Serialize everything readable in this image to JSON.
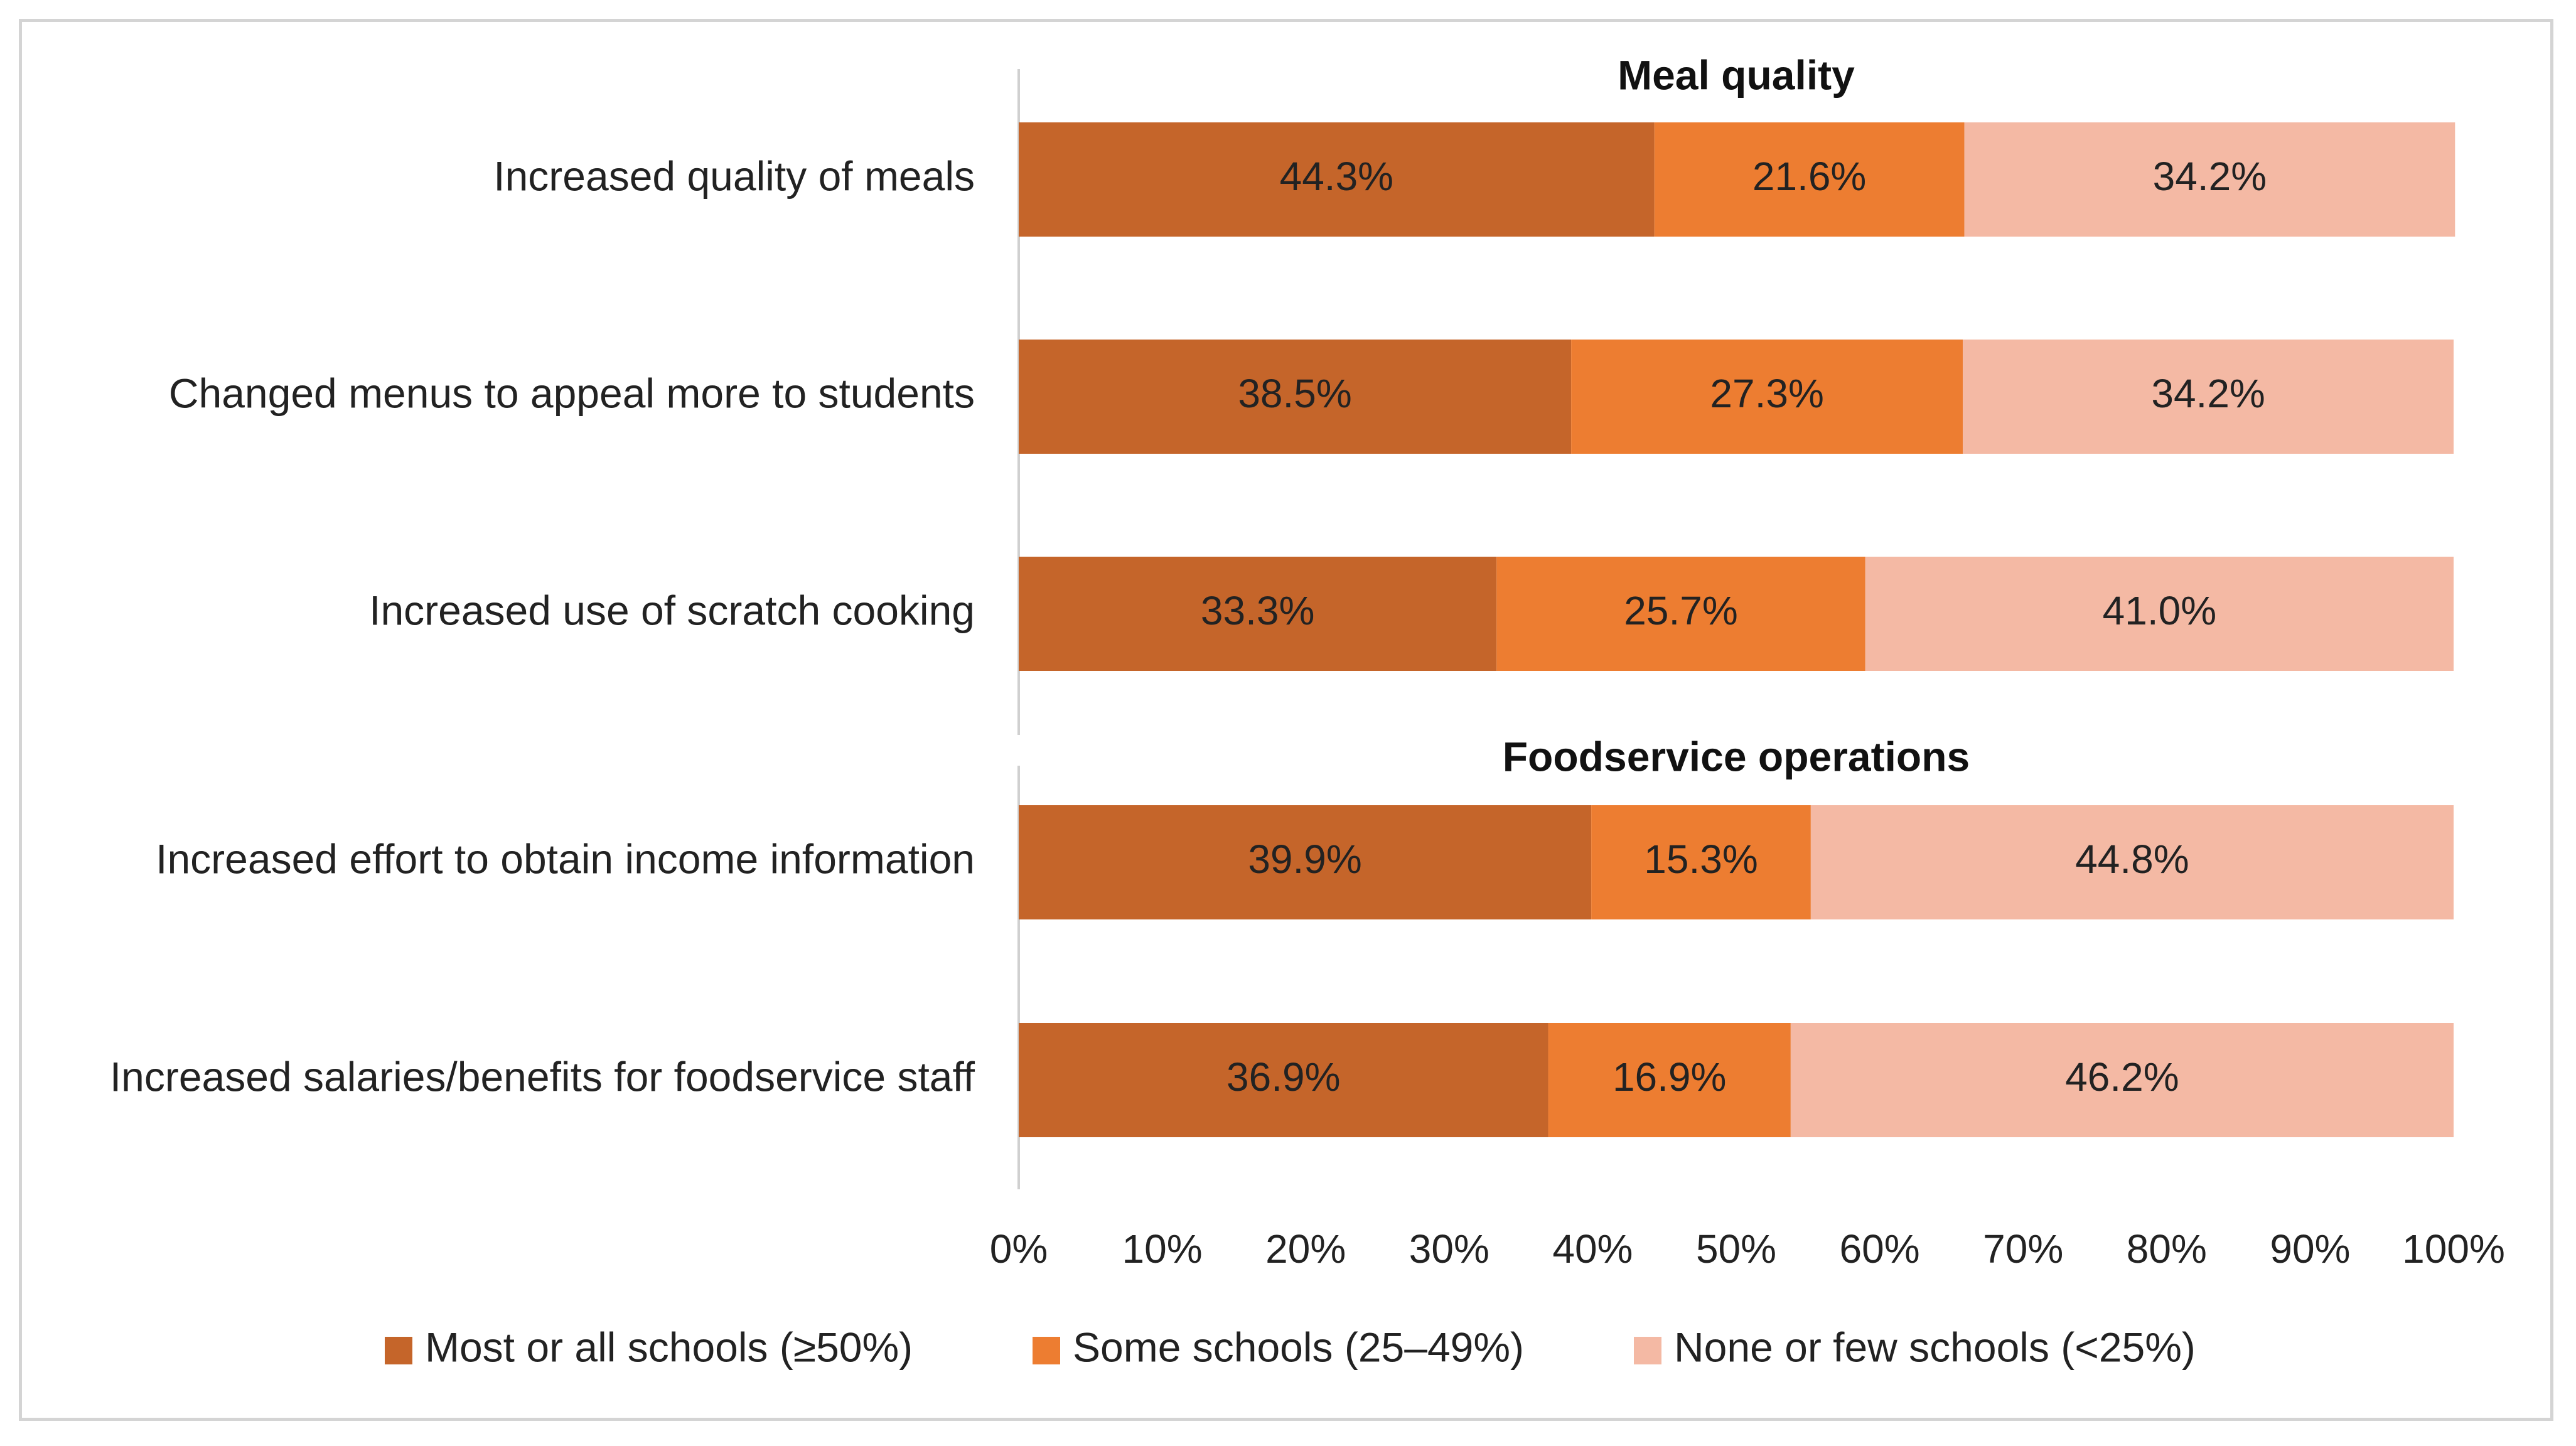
{
  "chart_data": {
    "type": "bar",
    "orientation": "horizontal",
    "stacked": true,
    "xlim": [
      0,
      100
    ],
    "ticks": [
      "0%",
      "10%",
      "20%",
      "30%",
      "40%",
      "50%",
      "60%",
      "70%",
      "80%",
      "90%",
      "100%"
    ],
    "grid": false,
    "legend_position": "bottom",
    "colors": [
      "#c5652a",
      "#ed7d31",
      "#f4b9a4"
    ],
    "series": [
      {
        "name": "Most or all schools (≥50%)"
      },
      {
        "name": "Some schools  (25–49%)"
      },
      {
        "name": "None or few schools (<25%)"
      }
    ],
    "sections": [
      {
        "title": "Meal quality",
        "rows": [
          {
            "label": "Increased quality of meals",
            "values": [
              44.3,
              21.6,
              34.2
            ],
            "value_labels": [
              "44.3%",
              "21.6%",
              "34.2%"
            ]
          },
          {
            "label": "Changed menus to appeal more to students",
            "values": [
              38.5,
              27.3,
              34.2
            ],
            "value_labels": [
              "38.5%",
              "27.3%",
              "34.2%"
            ]
          },
          {
            "label": "Increased use of scratch cooking",
            "values": [
              33.3,
              25.7,
              41.0
            ],
            "value_labels": [
              "33.3%",
              "25.7%",
              "41.0%"
            ]
          }
        ]
      },
      {
        "title": "Foodservice operations",
        "rows": [
          {
            "label": "Increased effort to obtain income information",
            "values": [
              39.9,
              15.3,
              44.8
            ],
            "value_labels": [
              "39.9%",
              "15.3%",
              "44.8%"
            ]
          },
          {
            "label": "Increased salaries/benefits for foodservice staff",
            "values": [
              36.9,
              16.9,
              46.2
            ],
            "value_labels": [
              "36.9%",
              "16.9%",
              "46.2%"
            ]
          }
        ]
      }
    ]
  }
}
